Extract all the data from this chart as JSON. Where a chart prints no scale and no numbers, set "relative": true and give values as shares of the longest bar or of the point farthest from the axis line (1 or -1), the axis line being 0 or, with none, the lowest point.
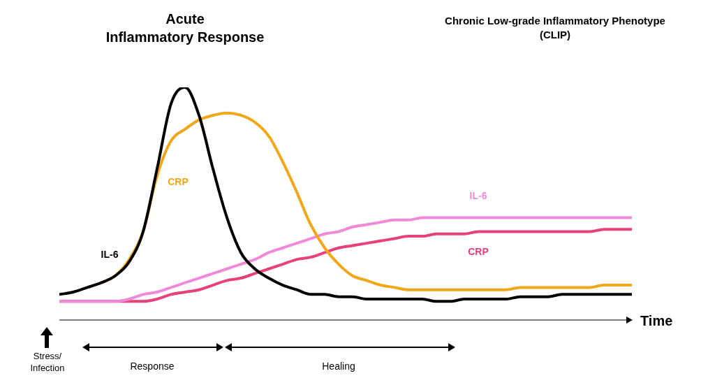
{
  "chart_data": {
    "type": "line",
    "relative": true,
    "xlabel": "Time",
    "legend": false,
    "grid": false,
    "marker": "none",
    "line_style": "solid",
    "categories": [
      null,
      null,
      null,
      null,
      null,
      null,
      null,
      null,
      null,
      null,
      null,
      null,
      null,
      null,
      null,
      null,
      null,
      null,
      null,
      null,
      null,
      null,
      null,
      null,
      null,
      null,
      null,
      null,
      null,
      null,
      null,
      null,
      null,
      null,
      null,
      null,
      null,
      null,
      null,
      null,
      null,
      null
    ],
    "series": [
      {
        "name": "IL-6",
        "color": "#000000",
        "values": [
          0.11,
          0.12,
          0.14,
          0.16,
          0.19,
          0.25,
          0.38,
          0.65,
          0.93,
          1,
          0.88,
          0.65,
          0.44,
          0.29,
          0.22,
          0.18,
          0.15,
          0.13,
          0.11,
          0.11,
          0.1,
          0.1,
          0.09,
          0.09,
          0.09,
          0.09,
          0.09,
          0.08,
          0.08,
          0.09,
          0.09,
          0.09,
          0.09,
          0.1,
          0.1,
          0.1,
          0.11,
          0.11,
          0.11,
          0.11,
          0.11,
          0.11
        ]
      },
      {
        "name": "CRP",
        "color": "#f0a818",
        "values": [
          null,
          null,
          null,
          0.16,
          0.19,
          0.26,
          0.38,
          0.62,
          0.77,
          0.82,
          0.86,
          0.88,
          0.89,
          0.88,
          0.85,
          0.79,
          0.68,
          0.55,
          0.41,
          0.31,
          0.24,
          0.19,
          0.17,
          0.15,
          0.14,
          0.13,
          0.13,
          0.13,
          0.13,
          0.13,
          0.13,
          0.13,
          0.13,
          0.14,
          0.14,
          0.14,
          0.14,
          0.14,
          0.14,
          0.15,
          0.15,
          0.15
        ]
      },
      {
        "name": "IL-6",
        "color": "#f08ad8",
        "values": [
          0.08,
          0.08,
          0.08,
          0.08,
          0.08,
          0.09,
          0.11,
          0.12,
          0.14,
          0.16,
          0.18,
          0.2,
          0.22,
          0.24,
          0.26,
          0.29,
          0.31,
          0.33,
          0.35,
          0.37,
          0.38,
          0.4,
          0.41,
          0.42,
          0.43,
          0.43,
          0.44,
          0.44,
          0.44,
          0.44,
          0.44,
          0.44,
          0.44,
          0.44,
          0.44,
          0.44,
          0.44,
          0.44,
          0.44,
          0.44,
          0.44,
          0.44
        ]
      },
      {
        "name": "CRP",
        "color": "#e8407a",
        "values": [
          0.08,
          0.08,
          0.08,
          0.08,
          0.08,
          0.08,
          0.08,
          0.09,
          0.11,
          0.12,
          0.13,
          0.15,
          0.17,
          0.18,
          0.2,
          0.22,
          0.24,
          0.26,
          0.27,
          0.29,
          0.31,
          0.32,
          0.33,
          0.34,
          0.35,
          0.36,
          0.36,
          0.37,
          0.37,
          0.37,
          0.38,
          0.38,
          0.38,
          0.38,
          0.38,
          0.38,
          0.38,
          0.38,
          0.38,
          0.39,
          0.39,
          0.39
        ]
      }
    ],
    "annotations": [
      "Acute\nInflammatory Response",
      "Chronic Low-grade Inflammatory Phenotype\n(CLIP)",
      "Stress/ Infection",
      "Response",
      "Healing"
    ]
  }
}
